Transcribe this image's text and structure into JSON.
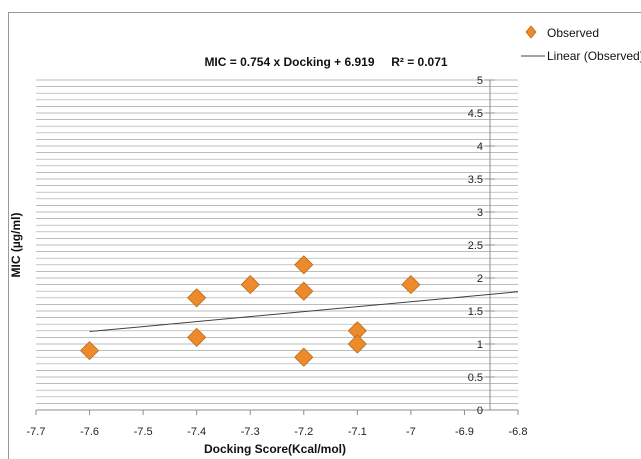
{
  "chart_data": {
    "type": "scatter",
    "title": "MIC = 0.754 x Docking + 6.919     R² = 0.071",
    "xlabel": "Docking Score(Kcal/mol)",
    "ylabel": "MIC (µg/ml)",
    "xlim": [
      -7.7,
      -6.8
    ],
    "ylim": [
      0,
      5
    ],
    "x_ticks": [
      "-7.7",
      "-7.6",
      "-7.5",
      "-7.4",
      "-7.3",
      "-7.2",
      "-7.1",
      "-7",
      "-6.9",
      "-6.8"
    ],
    "y_ticks": [
      "0",
      "0.5",
      "1",
      "1.5",
      "2",
      "2.5",
      "3",
      "3.5",
      "4",
      "4.5",
      "5"
    ],
    "grid": "horizontal minor gridlines",
    "legend_position": "top-right",
    "series": [
      {
        "name": "Observed",
        "marker": "diamond",
        "color": "#ED8B2C",
        "points": [
          {
            "x": -7.6,
            "y": 0.9
          },
          {
            "x": -7.4,
            "y": 1.7
          },
          {
            "x": -7.4,
            "y": 1.1
          },
          {
            "x": -7.3,
            "y": 1.9
          },
          {
            "x": -7.2,
            "y": 2.2
          },
          {
            "x": -7.2,
            "y": 1.8
          },
          {
            "x": -7.2,
            "y": 0.8
          },
          {
            "x": -7.1,
            "y": 1.2
          },
          {
            "x": -7.1,
            "y": 1.0
          },
          {
            "x": -7.0,
            "y": 1.9
          }
        ]
      },
      {
        "name": "Linear (Observed)",
        "type": "line",
        "color": "#404040",
        "slope": 0.754,
        "intercept": 6.919,
        "x_range": [
          -7.6,
          -6.8
        ]
      }
    ]
  }
}
